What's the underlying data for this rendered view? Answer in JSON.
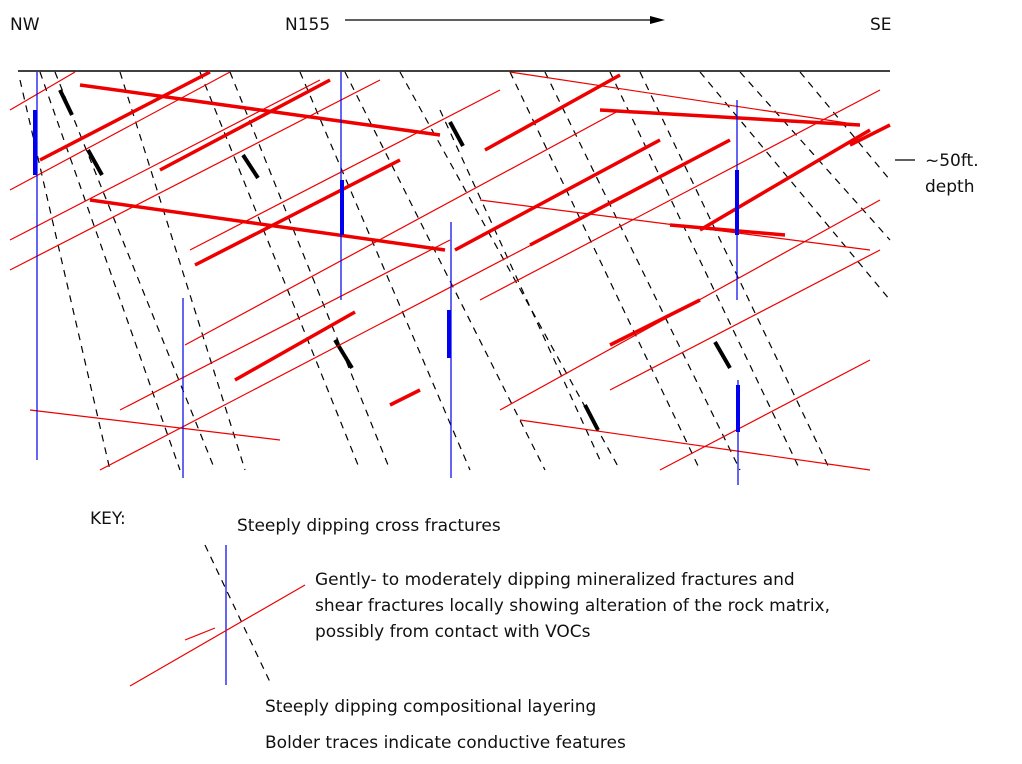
{
  "header": {
    "left": "NW",
    "center": "N155",
    "right": "SE"
  },
  "depth_label": {
    "line1": "~50ft.",
    "line2": "depth"
  },
  "key": {
    "title": "KEY:",
    "cross_fractures": "Steeply dipping cross fractures",
    "mineralized": [
      "Gently- to moderately dipping mineralized fractures and",
      "shear fractures locally showing alteration of the rock matrix,",
      "possibly from contact with VOCs"
    ],
    "layering": "Steeply dipping compositional layering",
    "note": "Bolder traces indicate conductive features"
  }
}
